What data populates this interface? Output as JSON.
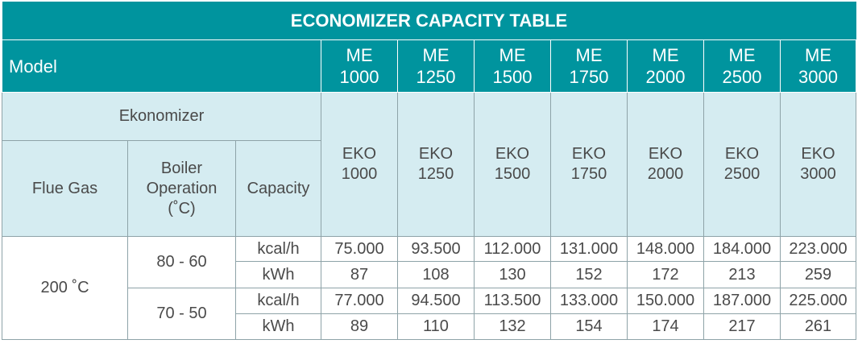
{
  "title": "ECONOMIZER CAPACITY TABLE",
  "model_label": "Model",
  "models": [
    [
      "ME",
      "1000"
    ],
    [
      "ME",
      "1250"
    ],
    [
      "ME",
      "1500"
    ],
    [
      "ME",
      "1750"
    ],
    [
      "ME",
      "2000"
    ],
    [
      "ME",
      "2500"
    ],
    [
      "ME",
      "3000"
    ]
  ],
  "ekonomizer_label": "Ekonomizer",
  "flue_gas_label": "Flue Gas",
  "boiler_operation_label": [
    "Boiler",
    "Operation",
    "(˚C)"
  ],
  "capacity_label": "Capacity",
  "eko_models": [
    [
      "EKO",
      "1000"
    ],
    [
      "EKO",
      "1250"
    ],
    [
      "EKO",
      "1500"
    ],
    [
      "EKO",
      "1750"
    ],
    [
      "EKO",
      "2000"
    ],
    [
      "EKO",
      "2500"
    ],
    [
      "EKO",
      "3000"
    ]
  ],
  "flue_gas_value": "200 ˚C",
  "groups": [
    {
      "operation": "80 - 60",
      "rows": [
        {
          "unit": "kcal/h",
          "values": [
            "75.000",
            "93.500",
            "112.000",
            "131.000",
            "148.000",
            "184.000",
            "223.000"
          ]
        },
        {
          "unit": "kWh",
          "values": [
            "87",
            "108",
            "130",
            "152",
            "172",
            "213",
            "259"
          ]
        }
      ]
    },
    {
      "operation": "70 - 50",
      "rows": [
        {
          "unit": "kcal/h",
          "values": [
            "77.000",
            "94.500",
            "113.500",
            "133.000",
            "150.000",
            "187.000",
            "225.000"
          ]
        },
        {
          "unit": "kWh",
          "values": [
            "89",
            "110",
            "132",
            "154",
            "174",
            "217",
            "261"
          ]
        }
      ]
    }
  ],
  "colors": {
    "header_teal": "#00949e",
    "subheader_light": "#d5ecf1",
    "text": "#4a4a4a"
  }
}
